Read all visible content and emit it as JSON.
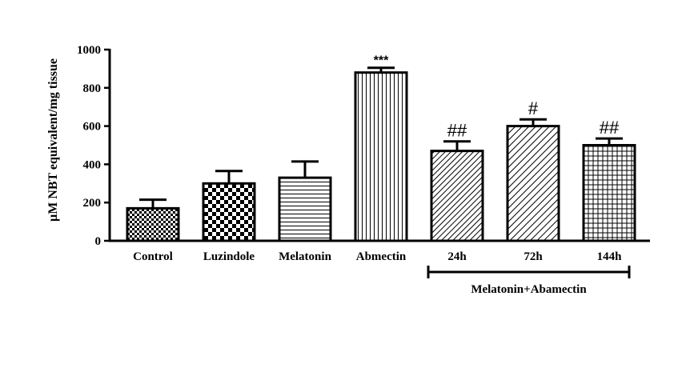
{
  "chart_data": {
    "type": "bar",
    "ylabel": "µM NBT equivalent/mg tissue",
    "ylim": [
      0,
      1000
    ],
    "yticks": [
      0,
      200,
      400,
      600,
      800,
      1000
    ],
    "grid": false,
    "legend": "none",
    "categories": [
      "Control",
      "Luzindole",
      "Melatonin",
      "Abmectin",
      "24h",
      "72h",
      "144h"
    ],
    "values": [
      170,
      300,
      330,
      880,
      470,
      600,
      500
    ],
    "error": [
      45,
      65,
      85,
      25,
      50,
      35,
      35
    ],
    "annotations": [
      "",
      "",
      "",
      "***",
      "##",
      "#",
      "##"
    ],
    "patterns": [
      "checker-small",
      "checker-large",
      "horizontal",
      "vertical",
      "diagonal-dense",
      "diagonal",
      "grid"
    ],
    "group_bracket": {
      "label": "Melatonin+Abamectin",
      "from_index": 4,
      "to_index": 6
    },
    "colors": {
      "stroke": "#000000",
      "fill": "#ffffff"
    }
  }
}
